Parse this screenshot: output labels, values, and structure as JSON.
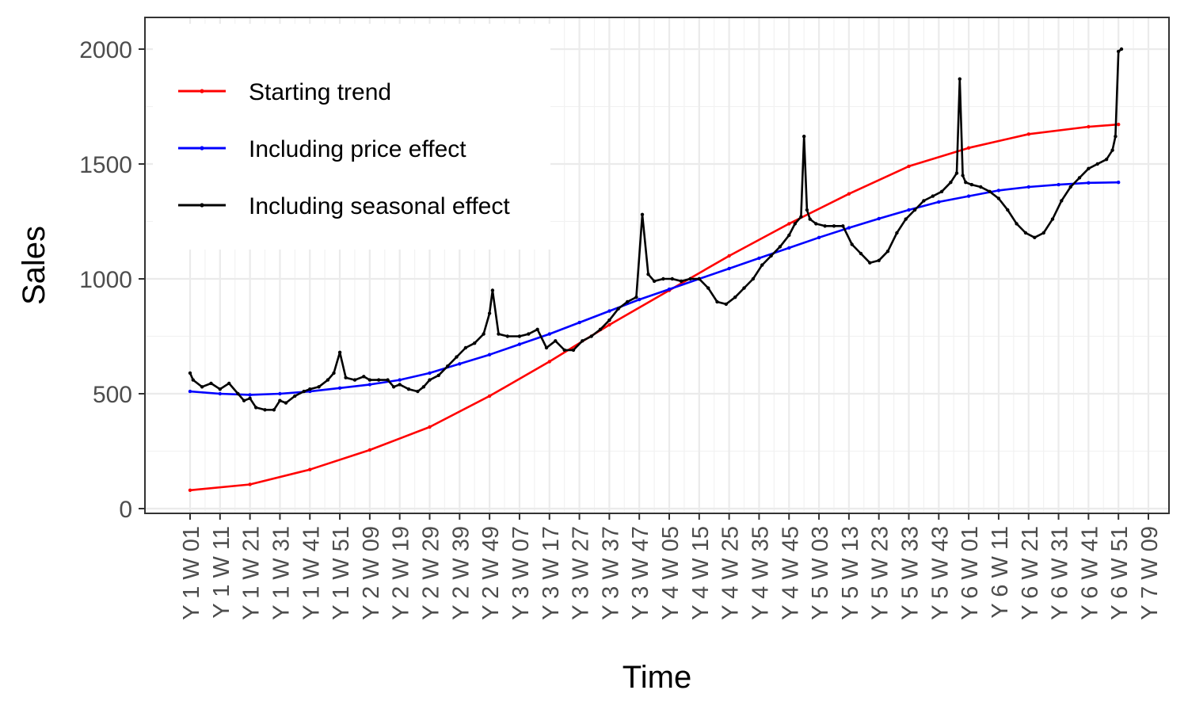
{
  "chart_data": {
    "type": "line",
    "title": "",
    "xlabel": "Time",
    "ylabel": "Sales",
    "ylim": [
      0,
      2100
    ],
    "yticks": [
      0,
      500,
      1000,
      1500,
      2000
    ],
    "grid": true,
    "legend_position": "top-left",
    "weeks_per_year": 52,
    "x_tick_labels": [
      "Y 1 W 01",
      "Y 1 W 11",
      "Y 1 W 21",
      "Y 1 W 31",
      "Y 1 W 41",
      "Y 1 W 51",
      "Y 2 W 09",
      "Y 2 W 19",
      "Y 2 W 29",
      "Y 2 W 39",
      "Y 2 W 49",
      "Y 3 W 07",
      "Y 3 W 17",
      "Y 3 W 27",
      "Y 3 W 37",
      "Y 3 W 47",
      "Y 4 W 05",
      "Y 4 W 15",
      "Y 4 W 25",
      "Y 4 W 35",
      "Y 4 W 45",
      "Y 5 W 03",
      "Y 5 W 13",
      "Y 5 W 23",
      "Y 5 W 33",
      "Y 5 W 43",
      "Y 6 W 01",
      "Y 6 W 11",
      "Y 6 W 21",
      "Y 6 W 31",
      "Y 6 W 41",
      "Y 6 W 51",
      "Y 7 W 09"
    ],
    "series": [
      {
        "name": "Starting trend",
        "color": "#ff0000",
        "x": [
          "Y 1 W 01",
          "Y 1 W 21",
          "Y 1 W 41",
          "Y 2 W 09",
          "Y 2 W 29",
          "Y 2 W 49",
          "Y 3 W 17",
          "Y 3 W 37",
          "Y 4 W 05",
          "Y 4 W 25",
          "Y 4 W 45",
          "Y 5 W 13",
          "Y 5 W 33",
          "Y 6 W 01",
          "Y 6 W 21",
          "Y 6 W 41",
          "Y 6 W 51"
        ],
        "y": [
          80,
          105,
          170,
          255,
          355,
          490,
          640,
          800,
          950,
          1100,
          1240,
          1370,
          1490,
          1570,
          1630,
          1662,
          1672
        ]
      },
      {
        "name": "Including price effect",
        "color": "#0000ff",
        "x": [
          "Y 1 W 01",
          "Y 1 W 11",
          "Y 1 W 21",
          "Y 1 W 31",
          "Y 1 W 41",
          "Y 1 W 51",
          "Y 2 W 09",
          "Y 2 W 19",
          "Y 2 W 29",
          "Y 2 W 39",
          "Y 2 W 49",
          "Y 3 W 07",
          "Y 3 W 17",
          "Y 3 W 27",
          "Y 3 W 37",
          "Y 3 W 47",
          "Y 4 W 05",
          "Y 4 W 15",
          "Y 4 W 25",
          "Y 4 W 35",
          "Y 4 W 45",
          "Y 5 W 03",
          "Y 5 W 13",
          "Y 5 W 23",
          "Y 5 W 33",
          "Y 5 W 43",
          "Y 6 W 01",
          "Y 6 W 11",
          "Y 6 W 21",
          "Y 6 W 31",
          "Y 6 W 41",
          "Y 6 W 51"
        ],
        "y": [
          510,
          500,
          495,
          500,
          510,
          525,
          540,
          560,
          590,
          630,
          670,
          715,
          760,
          810,
          860,
          910,
          955,
          1000,
          1045,
          1090,
          1135,
          1180,
          1222,
          1262,
          1300,
          1335,
          1360,
          1385,
          1400,
          1410,
          1418,
          1420
        ]
      },
      {
        "name": "Including seasonal effect",
        "color": "#000000",
        "x": [
          "Y 1 W 01",
          "Y 1 W 02",
          "Y 1 W 05",
          "Y 1 W 08",
          "Y 1 W 11",
          "Y 1 W 14",
          "Y 1 W 17",
          "Y 1 W 19",
          "Y 1 W 21",
          "Y 1 W 23",
          "Y 1 W 26",
          "Y 1 W 29",
          "Y 1 W 31",
          "Y 1 W 33",
          "Y 1 W 36",
          "Y 1 W 39",
          "Y 1 W 41",
          "Y 1 W 44",
          "Y 1 W 47",
          "Y 1 W 49",
          "Y 1 W 51",
          "Y 2 W 01",
          "Y 2 W 04",
          "Y 2 W 07",
          "Y 2 W 09",
          "Y 2 W 12",
          "Y 2 W 15",
          "Y 2 W 17",
          "Y 2 W 19",
          "Y 2 W 22",
          "Y 2 W 25",
          "Y 2 W 27",
          "Y 2 W 29",
          "Y 2 W 32",
          "Y 2 W 35",
          "Y 2 W 38",
          "Y 2 W 41",
          "Y 2 W 44",
          "Y 2 W 47",
          "Y 2 W 49",
          "Y 2 W 50",
          "Y 2 W 52",
          "Y 3 W 03",
          "Y 3 W 07",
          "Y 3 W 10",
          "Y 3 W 13",
          "Y 3 W 16",
          "Y 3 W 19",
          "Y 3 W 22",
          "Y 3 W 25",
          "Y 3 W 28",
          "Y 3 W 31",
          "Y 3 W 34",
          "Y 3 W 37",
          "Y 3 W 40",
          "Y 3 W 43",
          "Y 3 W 46",
          "Y 3 W 48",
          "Y 3 W 50",
          "Y 3 W 52",
          "Y 4 W 03",
          "Y 4 W 06",
          "Y 4 W 09",
          "Y 4 W 12",
          "Y 4 W 15",
          "Y 4 W 18",
          "Y 4 W 21",
          "Y 4 W 24",
          "Y 4 W 27",
          "Y 4 W 30",
          "Y 4 W 33",
          "Y 4 W 36",
          "Y 4 W 39",
          "Y 4 W 42",
          "Y 4 W 45",
          "Y 4 W 47",
          "Y 4 W 49",
          "Y 4 W 50",
          "Y 4 W 51",
          "Y 4 W 52",
          "Y 5 W 02",
          "Y 5 W 05",
          "Y 5 W 08",
          "Y 5 W 11",
          "Y 5 W 14",
          "Y 5 W 17",
          "Y 5 W 20",
          "Y 5 W 23",
          "Y 5 W 26",
          "Y 5 W 29",
          "Y 5 W 32",
          "Y 5 W 35",
          "Y 5 W 38",
          "Y 5 W 41",
          "Y 5 W 44",
          "Y 5 W 47",
          "Y 5 W 49",
          "Y 5 W 50",
          "Y 5 W 51",
          "Y 5 W 52",
          "Y 6 W 02",
          "Y 6 W 05",
          "Y 6 W 08",
          "Y 6 W 11",
          "Y 6 W 14",
          "Y 6 W 17",
          "Y 6 W 20",
          "Y 6 W 23",
          "Y 6 W 26",
          "Y 6 W 29",
          "Y 6 W 32",
          "Y 6 W 35",
          "Y 6 W 38",
          "Y 6 W 41",
          "Y 6 W 44",
          "Y 6 W 47",
          "Y 6 W 49",
          "Y 6 W 50",
          "Y 6 W 51",
          "Y 6 W 52"
        ],
        "y": [
          590,
          560,
          530,
          545,
          520,
          545,
          500,
          470,
          480,
          440,
          430,
          430,
          470,
          460,
          490,
          510,
          520,
          530,
          560,
          590,
          680,
          570,
          560,
          575,
          560,
          560,
          560,
          530,
          540,
          520,
          510,
          530,
          560,
          580,
          620,
          660,
          700,
          720,
          760,
          850,
          950,
          760,
          750,
          750,
          760,
          780,
          700,
          730,
          690,
          690,
          730,
          750,
          780,
          820,
          870,
          900,
          920,
          1280,
          1020,
          990,
          1000,
          1000,
          990,
          1000,
          1000,
          960,
          900,
          890,
          920,
          960,
          1000,
          1060,
          1100,
          1140,
          1190,
          1240,
          1270,
          1620,
          1300,
          1260,
          1240,
          1230,
          1230,
          1230,
          1150,
          1110,
          1070,
          1080,
          1120,
          1200,
          1260,
          1300,
          1340,
          1360,
          1380,
          1420,
          1460,
          1870,
          1450,
          1420,
          1410,
          1400,
          1380,
          1350,
          1300,
          1240,
          1200,
          1180,
          1200,
          1260,
          1340,
          1400,
          1440,
          1480,
          1500,
          1520,
          1560,
          1620,
          1990,
          2000
        ]
      }
    ]
  }
}
